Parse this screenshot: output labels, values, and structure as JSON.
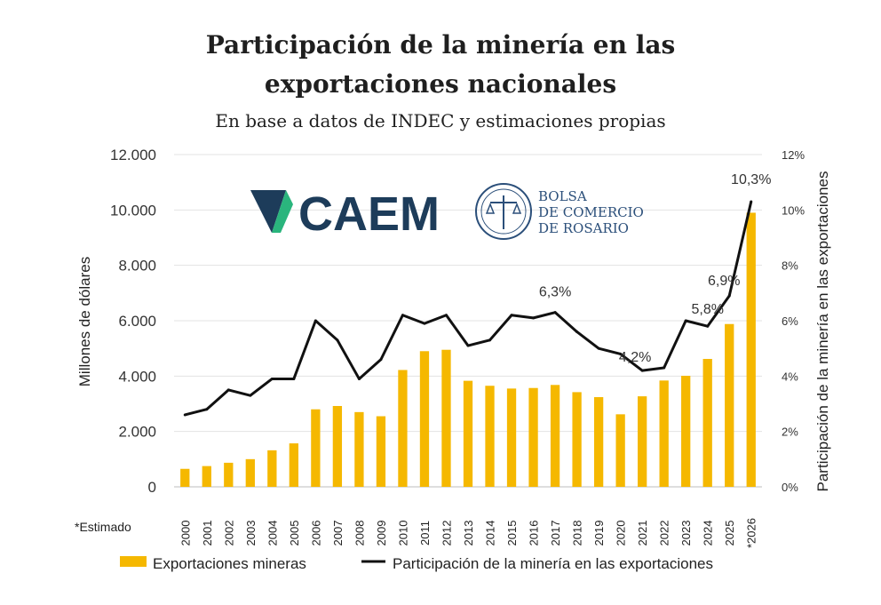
{
  "header": {
    "title_line1": "Participación de la minería en las",
    "title_line2": "exportaciones nacionales",
    "subtitle": "En base a datos de INDEC y estimaciones propias"
  },
  "logos": {
    "caem": "CAEM",
    "bolsa_line1": "BOLSA",
    "bolsa_line2": "DE COMERCIO",
    "bolsa_line3": "DE ROSARIO"
  },
  "note": "*Estimado",
  "colors": {
    "bar": "#f5b800",
    "line": "#111111",
    "grid": "#e3e3e3"
  },
  "chart_data": {
    "type": "bar+line",
    "ylabel": "Millones de dólares",
    "y2label": "Participación de la minería en las exportaciones",
    "ylim": [
      0,
      12000
    ],
    "y2lim": [
      0,
      12
    ],
    "y_ticks": [
      "0",
      "2.000",
      "4.000",
      "6.000",
      "8.000",
      "10.000",
      "12.000"
    ],
    "y2_ticks": [
      "0%",
      "2%",
      "4%",
      "6%",
      "8%",
      "10%",
      "12%"
    ],
    "grid": true,
    "legend_position": "bottom",
    "categories": [
      "2000",
      "2001",
      "2002",
      "2003",
      "2004",
      "2005",
      "2006",
      "2007",
      "2008",
      "2009",
      "2010",
      "2011",
      "2012",
      "2013",
      "2014",
      "2015",
      "2016",
      "2017",
      "2018",
      "2019",
      "2020",
      "2021",
      "2022",
      "2023",
      "2024",
      "2025",
      "*2026"
    ],
    "series": [
      {
        "name": "Exportaciones mineras",
        "type": "bar",
        "axis": "left",
        "values": [
          650,
          750,
          870,
          1000,
          1320,
          1570,
          2800,
          2920,
          2700,
          2550,
          4220,
          4900,
          4950,
          3830,
          3650,
          3550,
          3570,
          3680,
          3420,
          3240,
          2620,
          3270,
          3840,
          4010,
          4620,
          5880,
          9900
        ]
      },
      {
        "name": "Participación de la minería en las exportaciones",
        "type": "line",
        "axis": "right",
        "values": [
          2.6,
          2.8,
          3.5,
          3.3,
          3.9,
          3.9,
          6.0,
          5.3,
          3.9,
          4.6,
          6.2,
          5.9,
          6.2,
          5.1,
          5.3,
          6.2,
          6.1,
          6.3,
          5.6,
          5.0,
          4.8,
          4.2,
          4.3,
          6.0,
          5.8,
          6.9,
          10.3
        ]
      }
    ],
    "annotations": [
      {
        "index": 17,
        "text": "6,3%"
      },
      {
        "index": 21,
        "text": "4,2%"
      },
      {
        "index": 24,
        "text": "5,8%"
      },
      {
        "index": 25,
        "text": "6,9%"
      },
      {
        "index": 26,
        "text": "10,3%"
      }
    ]
  }
}
